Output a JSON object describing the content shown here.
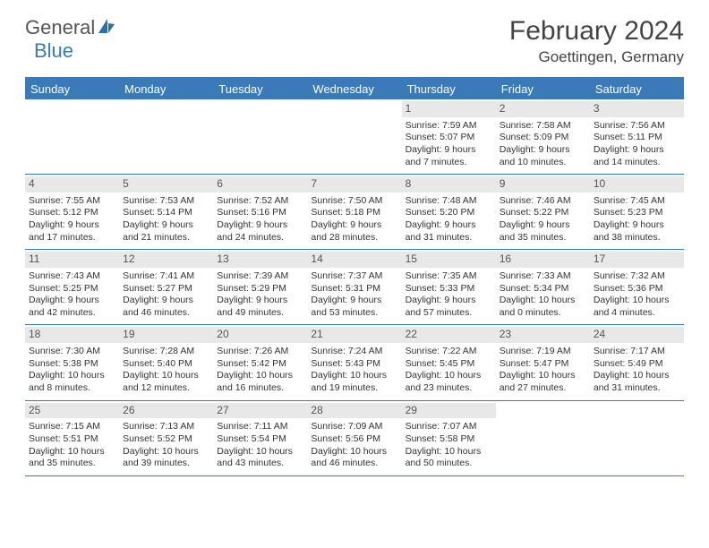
{
  "brand": {
    "part1": "General",
    "part2": "Blue"
  },
  "title": "February 2024",
  "location": "Goettingen, Germany",
  "colors": {
    "accent": "#3a7ab8",
    "daynum_bg": "#e8e8e8",
    "text": "#333333",
    "background": "#ffffff"
  },
  "dayNames": [
    "Sunday",
    "Monday",
    "Tuesday",
    "Wednesday",
    "Thursday",
    "Friday",
    "Saturday"
  ],
  "firstWeekday": 4,
  "daysInMonth": 29,
  "days": {
    "1": {
      "sunrise": "7:59 AM",
      "sunset": "5:07 PM",
      "daylight": "9 hours and 7 minutes."
    },
    "2": {
      "sunrise": "7:58 AM",
      "sunset": "5:09 PM",
      "daylight": "9 hours and 10 minutes."
    },
    "3": {
      "sunrise": "7:56 AM",
      "sunset": "5:11 PM",
      "daylight": "9 hours and 14 minutes."
    },
    "4": {
      "sunrise": "7:55 AM",
      "sunset": "5:12 PM",
      "daylight": "9 hours and 17 minutes."
    },
    "5": {
      "sunrise": "7:53 AM",
      "sunset": "5:14 PM",
      "daylight": "9 hours and 21 minutes."
    },
    "6": {
      "sunrise": "7:52 AM",
      "sunset": "5:16 PM",
      "daylight": "9 hours and 24 minutes."
    },
    "7": {
      "sunrise": "7:50 AM",
      "sunset": "5:18 PM",
      "daylight": "9 hours and 28 minutes."
    },
    "8": {
      "sunrise": "7:48 AM",
      "sunset": "5:20 PM",
      "daylight": "9 hours and 31 minutes."
    },
    "9": {
      "sunrise": "7:46 AM",
      "sunset": "5:22 PM",
      "daylight": "9 hours and 35 minutes."
    },
    "10": {
      "sunrise": "7:45 AM",
      "sunset": "5:23 PM",
      "daylight": "9 hours and 38 minutes."
    },
    "11": {
      "sunrise": "7:43 AM",
      "sunset": "5:25 PM",
      "daylight": "9 hours and 42 minutes."
    },
    "12": {
      "sunrise": "7:41 AM",
      "sunset": "5:27 PM",
      "daylight": "9 hours and 46 minutes."
    },
    "13": {
      "sunrise": "7:39 AM",
      "sunset": "5:29 PM",
      "daylight": "9 hours and 49 minutes."
    },
    "14": {
      "sunrise": "7:37 AM",
      "sunset": "5:31 PM",
      "daylight": "9 hours and 53 minutes."
    },
    "15": {
      "sunrise": "7:35 AM",
      "sunset": "5:33 PM",
      "daylight": "9 hours and 57 minutes."
    },
    "16": {
      "sunrise": "7:33 AM",
      "sunset": "5:34 PM",
      "daylight": "10 hours and 0 minutes."
    },
    "17": {
      "sunrise": "7:32 AM",
      "sunset": "5:36 PM",
      "daylight": "10 hours and 4 minutes."
    },
    "18": {
      "sunrise": "7:30 AM",
      "sunset": "5:38 PM",
      "daylight": "10 hours and 8 minutes."
    },
    "19": {
      "sunrise": "7:28 AM",
      "sunset": "5:40 PM",
      "daylight": "10 hours and 12 minutes."
    },
    "20": {
      "sunrise": "7:26 AM",
      "sunset": "5:42 PM",
      "daylight": "10 hours and 16 minutes."
    },
    "21": {
      "sunrise": "7:24 AM",
      "sunset": "5:43 PM",
      "daylight": "10 hours and 19 minutes."
    },
    "22": {
      "sunrise": "7:22 AM",
      "sunset": "5:45 PM",
      "daylight": "10 hours and 23 minutes."
    },
    "23": {
      "sunrise": "7:19 AM",
      "sunset": "5:47 PM",
      "daylight": "10 hours and 27 minutes."
    },
    "24": {
      "sunrise": "7:17 AM",
      "sunset": "5:49 PM",
      "daylight": "10 hours and 31 minutes."
    },
    "25": {
      "sunrise": "7:15 AM",
      "sunset": "5:51 PM",
      "daylight": "10 hours and 35 minutes."
    },
    "26": {
      "sunrise": "7:13 AM",
      "sunset": "5:52 PM",
      "daylight": "10 hours and 39 minutes."
    },
    "27": {
      "sunrise": "7:11 AM",
      "sunset": "5:54 PM",
      "daylight": "10 hours and 43 minutes."
    },
    "28": {
      "sunrise": "7:09 AM",
      "sunset": "5:56 PM",
      "daylight": "10 hours and 46 minutes."
    },
    "29": {
      "sunrise": "7:07 AM",
      "sunset": "5:58 PM",
      "daylight": "10 hours and 50 minutes."
    }
  },
  "labels": {
    "sunrise": "Sunrise: ",
    "sunset": "Sunset: ",
    "daylight": "Daylight: "
  }
}
